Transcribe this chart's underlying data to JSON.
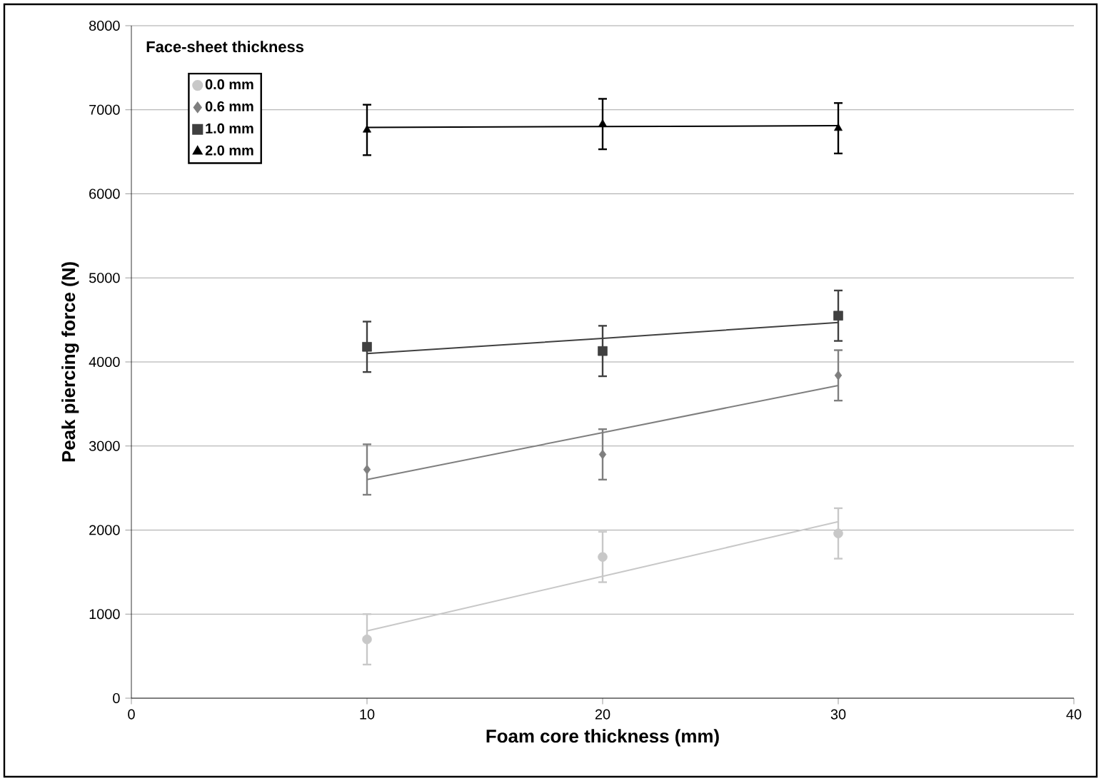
{
  "chart_data": {
    "type": "scatter",
    "xlabel": "Foam core thickness (mm)",
    "ylabel": "Peak piercing force (N)",
    "legend_title": "Face-sheet thickness",
    "xlim": [
      0,
      40
    ],
    "xticks": [
      0,
      10,
      20,
      30,
      40
    ],
    "ylim": [
      0,
      8000
    ],
    "yticks": [
      0,
      1000,
      2000,
      3000,
      4000,
      5000,
      6000,
      7000,
      8000
    ],
    "grid": "y",
    "legend": "top left",
    "x": [
      10,
      20,
      30
    ],
    "series": [
      {
        "name": "0.0 mm",
        "marker": "circle",
        "color": "#c8c8c8",
        "values": [
          700,
          1680,
          1960
        ],
        "errors": [
          300,
          300,
          300
        ]
      },
      {
        "name": "0.6 mm",
        "marker": "diamond",
        "color": "#7f7f7f",
        "values": [
          2720,
          2900,
          3840
        ],
        "errors": [
          300,
          300,
          300
        ]
      },
      {
        "name": "1.0 mm",
        "marker": "square",
        "color": "#404040",
        "values": [
          4180,
          4130,
          4550
        ],
        "errors": [
          300,
          300,
          300
        ]
      },
      {
        "name": "2.0 mm",
        "marker": "triangle",
        "color": "#000000",
        "values": [
          6760,
          6830,
          6780
        ],
        "errors": [
          300,
          300,
          300
        ]
      },
      {
        "type": "line",
        "line_style": "solid",
        "color": "#c8c8c8",
        "values": [
          800,
          1450,
          2100
        ]
      },
      {
        "type": "line",
        "line_style": "solid",
        "color": "#7f7f7f",
        "values": [
          2600,
          3160,
          3720
        ]
      },
      {
        "type": "line",
        "line_style": "solid",
        "color": "#404040",
        "values": [
          4100,
          4280,
          4470
        ]
      },
      {
        "type": "line",
        "line_style": "solid",
        "color": "#000000",
        "values": [
          6790,
          6800,
          6810
        ]
      }
    ]
  }
}
